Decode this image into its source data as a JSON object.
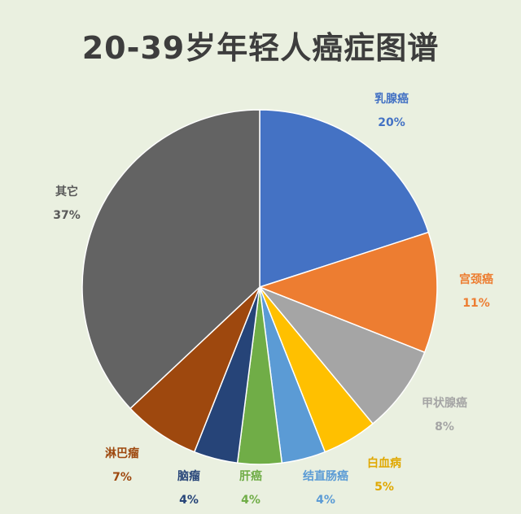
{
  "chart_data": {
    "type": "pie",
    "title": "20-39岁年轻人癌症图谱",
    "slices": [
      {
        "label": "乳腺癌",
        "value": 20,
        "display": "20%",
        "color": "#4472c4",
        "label_color": "#4472c4"
      },
      {
        "label": "宫颈癌",
        "value": 11,
        "display": "11%",
        "color": "#ed7d31",
        "label_color": "#ed7d31"
      },
      {
        "label": "甲状腺癌",
        "value": 8,
        "display": "8%",
        "color": "#a5a5a5",
        "label_color": "#a5a5a5"
      },
      {
        "label": "白血病",
        "value": 5,
        "display": "5%",
        "color": "#ffc000",
        "label_color": "#e0a800"
      },
      {
        "label": "结直肠癌",
        "value": 4,
        "display": "4%",
        "color": "#5b9bd5",
        "label_color": "#5b9bd5"
      },
      {
        "label": "肝癌",
        "value": 4,
        "display": "4%",
        "color": "#70ad47",
        "label_color": "#70ad47"
      },
      {
        "label": "脑瘤",
        "value": 4,
        "display": "4%",
        "color": "#264478",
        "label_color": "#264478"
      },
      {
        "label": "淋巴瘤",
        "value": 7,
        "display": "7%",
        "color": "#9e480e",
        "label_color": "#9e480e"
      },
      {
        "label": "其它",
        "value": 37,
        "display": "37%",
        "color": "#636363",
        "label_color": "#595959"
      }
    ]
  }
}
